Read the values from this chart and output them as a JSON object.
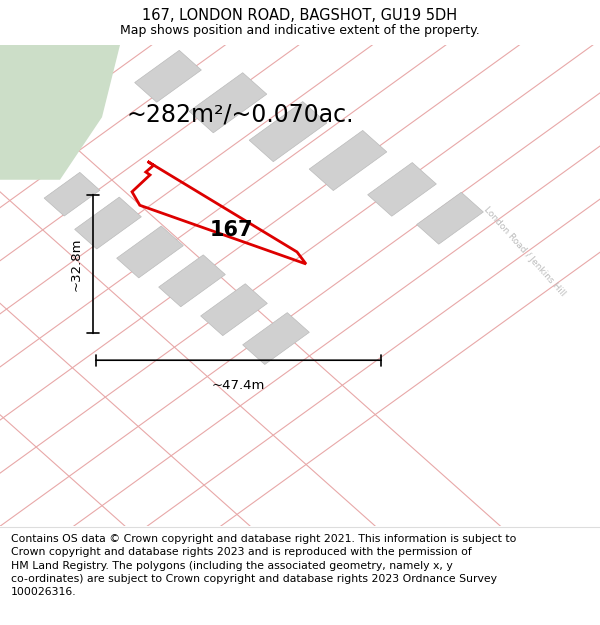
{
  "title": "167, LONDON ROAD, BAGSHOT, GU19 5DH",
  "subtitle": "Map shows position and indicative extent of the property.",
  "footer": "Contains OS data © Crown copyright and database right 2021. This information is subject to\nCrown copyright and database rights 2023 and is reproduced with the permission of\nHM Land Registry. The polygons (including the associated geometry, namely x, y\nco-ordinates) are subject to Crown copyright and database rights 2023 Ordnance Survey\n100026316.",
  "area_text": "~282m²/~0.070ac.",
  "width_text": "~47.4m",
  "height_text": "~32.8m",
  "label_text": "167",
  "map_bg": "#ffffff",
  "green_patch_color": "#ccdec8",
  "road_line_color": "#e8a8a8",
  "building_color": "#d0d0d0",
  "highlight_color": "#dd0000",
  "road_label": "London Road / Jenkins Hill",
  "road_label_color": "#bbbbbb",
  "title_fontsize": 10.5,
  "subtitle_fontsize": 9,
  "footer_fontsize": 7.8,
  "area_fontsize": 17,
  "dim_fontsize": 9.5,
  "label_fontsize": 15
}
